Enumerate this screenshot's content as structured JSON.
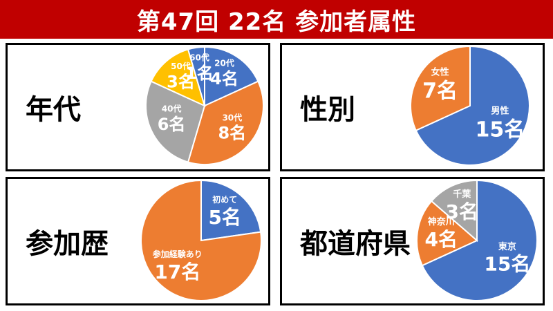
{
  "title": "第47回 22名 参加者属性",
  "chart_data": [
    {
      "type": "pie",
      "title": "年代",
      "categories": [
        "20代",
        "30代",
        "40代",
        "50代",
        "60代"
      ],
      "values": [
        4,
        8,
        6,
        3,
        1
      ],
      "value_labels": [
        "4名",
        "8名",
        "6名",
        "3名",
        "1名"
      ],
      "colors": [
        "#4472c4",
        "#ed7d31",
        "#a5a5a5",
        "#ffc000",
        "#4472c4"
      ]
    },
    {
      "type": "pie",
      "title": "性別",
      "categories": [
        "男性",
        "女性"
      ],
      "values": [
        15,
        7
      ],
      "value_labels": [
        "15名",
        "7名"
      ],
      "colors": [
        "#4472c4",
        "#ed7d31"
      ]
    },
    {
      "type": "pie",
      "title": "参加歴",
      "categories": [
        "初めて",
        "参加経験あり"
      ],
      "values": [
        5,
        17
      ],
      "value_labels": [
        "5名",
        "17名"
      ],
      "colors": [
        "#4472c4",
        "#ed7d31"
      ]
    },
    {
      "type": "pie",
      "title": "都道府県",
      "categories": [
        "東京",
        "神奈川",
        "千葉"
      ],
      "values": [
        15,
        4,
        3
      ],
      "value_labels": [
        "15名",
        "4名",
        "3名"
      ],
      "colors": [
        "#4472c4",
        "#ed7d31",
        "#a5a5a5"
      ]
    }
  ]
}
